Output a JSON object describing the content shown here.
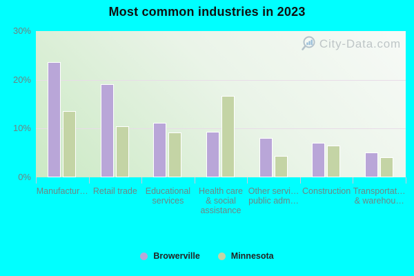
{
  "title": "Most common industries in 2023",
  "watermark": "City-Data.com",
  "colors": {
    "page_background": "#00ffff",
    "plot_gradient_top_right": "#f7faf7",
    "plot_gradient_bottom_left": "#cbe9c4",
    "gridline": "#e8dce8",
    "axis_label": "#6e8282",
    "title_text": "#101010",
    "watermark_text": "#b5bdbf",
    "browerville_bar": "#b9a6d8",
    "minnesota_bar": "#c4d4a5"
  },
  "chart_data": {
    "type": "bar",
    "title": "Most common industries in 2023",
    "categories": [
      "Manufacturing",
      "Retail trade",
      "Educational services",
      "Health care & social assistance",
      "Other services, public administration",
      "Construction",
      "Transportation & warehousing"
    ],
    "category_display": [
      [
        "Manufactur…"
      ],
      [
        "Retail trade"
      ],
      [
        "Educational",
        "services"
      ],
      [
        "Health care",
        "& social",
        "assistance"
      ],
      [
        "Other servi…",
        "public adm…"
      ],
      [
        "Construction"
      ],
      [
        "Transportat…",
        "& warehou…"
      ]
    ],
    "series": [
      {
        "name": "Browerville",
        "color": "#b9a6d8",
        "values": [
          23.5,
          19.0,
          11.0,
          9.2,
          7.9,
          7.0,
          5.0
        ]
      },
      {
        "name": "Minnesota",
        "color": "#c4d4a5",
        "values": [
          13.4,
          10.4,
          9.1,
          16.6,
          4.3,
          6.4,
          3.9
        ]
      }
    ],
    "xlabel": "",
    "ylabel": "",
    "ylim": [
      0,
      30
    ],
    "ytick_values": [
      0,
      10,
      20,
      30
    ],
    "ytick_labels": [
      "0%",
      "10%",
      "20%",
      "30%"
    ],
    "grid": true,
    "legend_position": "bottom"
  }
}
